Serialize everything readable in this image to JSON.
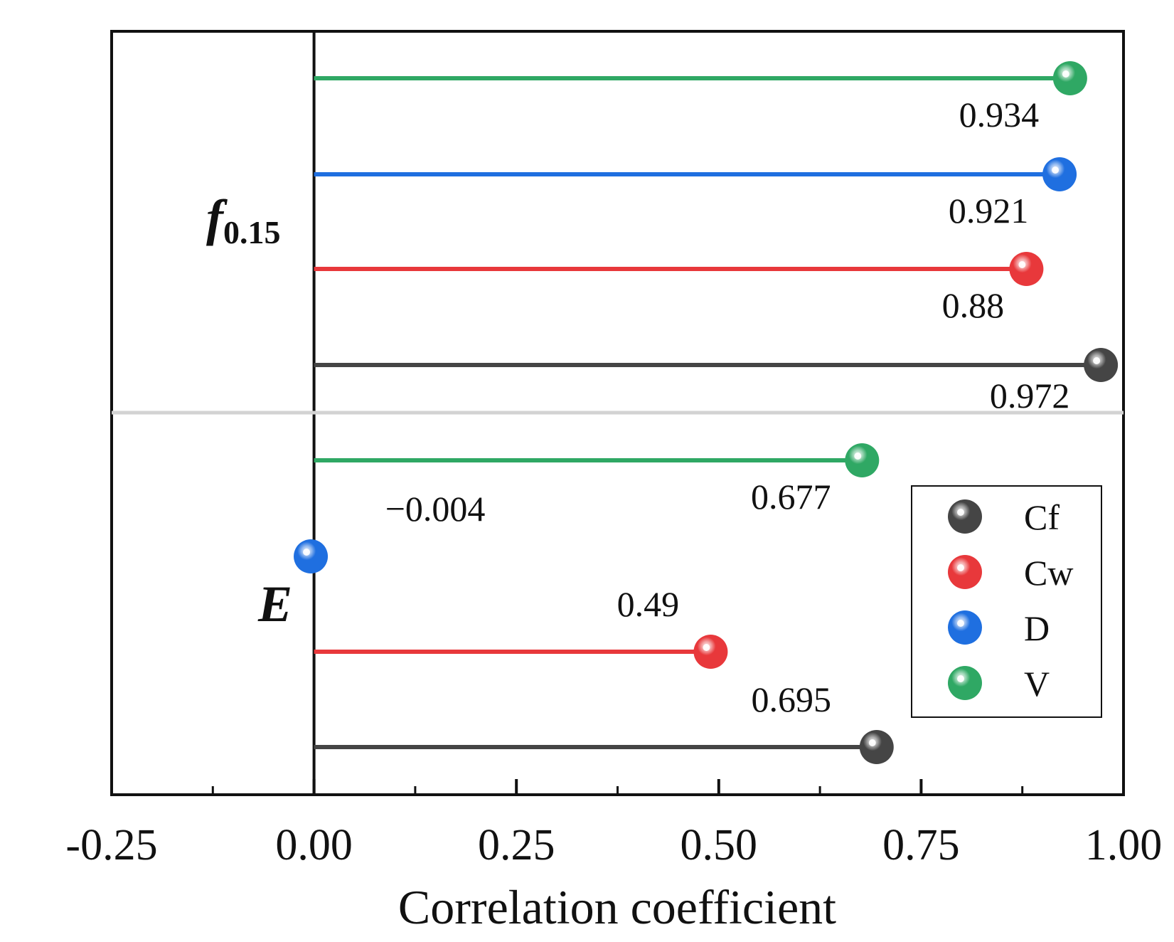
{
  "chart_data": {
    "type": "lollipop",
    "xlabel": "Correlation coefficient",
    "xlim": [
      -0.25,
      1.0
    ],
    "xticks": [
      "-0.25",
      "0.00",
      "0.25",
      "0.50",
      "0.75",
      "1.00"
    ],
    "xtick_values": [
      -0.25,
      0,
      0.25,
      0.5,
      0.75,
      1.0
    ],
    "groups": [
      {
        "name": "f",
        "subscript": "0.15",
        "items": [
          {
            "series": "V",
            "value": 0.934,
            "label": "0.934"
          },
          {
            "series": "D",
            "value": 0.921,
            "label": "0.921"
          },
          {
            "series": "Cw",
            "value": 0.88,
            "label": "0.88"
          },
          {
            "series": "Cf",
            "value": 0.972,
            "label": "0.972"
          }
        ]
      },
      {
        "name": "E",
        "subscript": "",
        "items": [
          {
            "series": "V",
            "value": 0.677,
            "label": "0.677"
          },
          {
            "series": "D",
            "value": -0.004,
            "label": "−0.004"
          },
          {
            "series": "Cw",
            "value": 0.49,
            "label": "0.49"
          },
          {
            "series": "Cf",
            "value": 0.695,
            "label": "0.695"
          }
        ]
      }
    ],
    "legend": {
      "position": "lower-right",
      "entries": [
        {
          "series": "Cf",
          "label": "Cf",
          "color": "#454545"
        },
        {
          "series": "Cw",
          "label": "Cw",
          "color": "#e8383b"
        },
        {
          "series": "D",
          "label": "D",
          "color": "#1f6fe0"
        },
        {
          "series": "V",
          "label": "V",
          "color": "#2fa864"
        }
      ]
    },
    "divider_color": "#d3d3d3"
  }
}
